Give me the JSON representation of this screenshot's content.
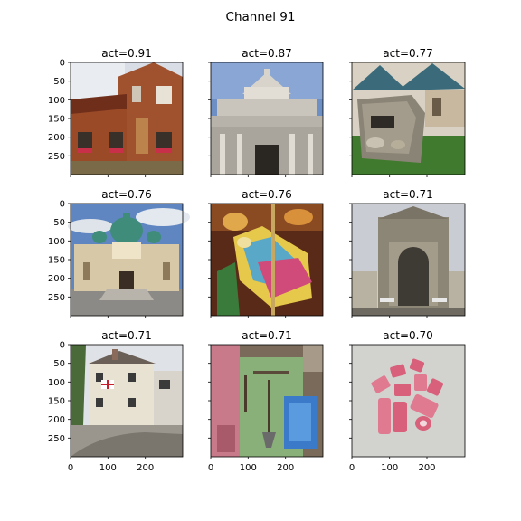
{
  "figure": {
    "title": "Channel 91"
  },
  "axes": {
    "y_ticks": [
      "0",
      "50",
      "100",
      "150",
      "200",
      "250"
    ],
    "x_ticks": [
      "0",
      "100",
      "200"
    ]
  },
  "panels": [
    {
      "title": "act=0.91",
      "subject": "brick house facade with windows and flower boxes"
    },
    {
      "title": "act=0.87",
      "subject": "domed classical building with columns"
    },
    {
      "title": "act=0.77",
      "subject": "stone mailbox in front of a house"
    },
    {
      "title": "act=0.76",
      "subject": "baroque church with green domes"
    },
    {
      "title": "act=0.76",
      "subject": "painted carousel horse"
    },
    {
      "title": "act=0.71",
      "subject": "stone building with large arched window"
    },
    {
      "title": "act=0.71",
      "subject": "white corner pub building with flags"
    },
    {
      "title": "act=0.71",
      "subject": "wooden wall with hanging tools and colored boards"
    },
    {
      "title": "act=0.70",
      "subject": "pink and white carved erasers on table"
    }
  ]
}
